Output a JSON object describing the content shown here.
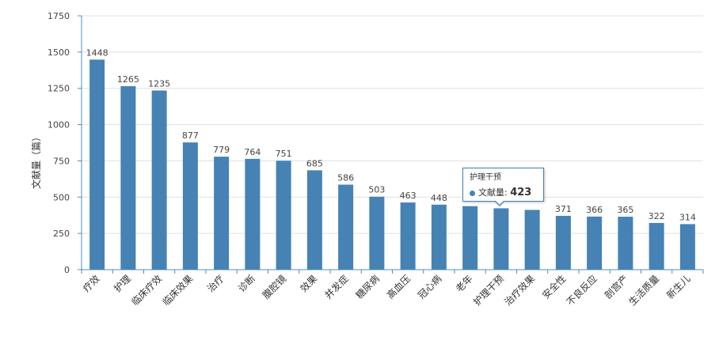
{
  "chart_data": {
    "type": "bar",
    "ylabel": "文献量（篇）",
    "ylim": [
      0,
      1750
    ],
    "yticks": [
      0,
      250,
      500,
      750,
      1000,
      1250,
      1500,
      1750
    ],
    "grid": true,
    "color": "#4682b4",
    "categories": [
      "疗效",
      "护理",
      "临床疗效",
      "临床效果",
      "治疗",
      "诊断",
      "腹腔镜",
      "效果",
      "并发症",
      "糖尿病",
      "高血压",
      "冠心病",
      "老年",
      "护理干预",
      "治疗效果",
      "安全性",
      "不良反应",
      "剖宫产",
      "生活质量",
      "新生儿"
    ],
    "series": [
      {
        "values": [
          1448,
          1265,
          1235,
          877,
          779,
          764,
          751,
          685,
          586,
          503,
          463,
          448,
          438,
          423,
          412,
          371,
          366,
          365,
          322,
          314
        ]
      }
    ],
    "data_labels": [
      "1448",
      "1265",
      "1235",
      "877",
      "779",
      "764",
      "751",
      "685",
      "586",
      "503",
      "463",
      "448",
      "",
      "",
      "",
      "371",
      "366",
      "365",
      "322",
      "314"
    ]
  },
  "tooltip": {
    "title": "护理干预",
    "series_label": "文献量: ",
    "value": "423"
  }
}
